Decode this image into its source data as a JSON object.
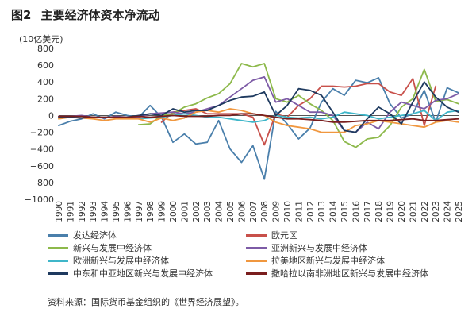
{
  "header": {
    "figure_no": "图2",
    "title": "主要经济体资本净流动",
    "unit": "(10亿美元)"
  },
  "source": "资料来源：国际货币基金组织的《世界经济展望》。",
  "chart_data": {
    "type": "line",
    "title": "主要经济体资本净流动",
    "ylabel": "(10亿美元)",
    "xlabel": "",
    "ylim": [
      -1000,
      800
    ],
    "yticks": [
      -1000,
      -800,
      -600,
      -400,
      -200,
      0,
      200,
      400,
      600,
      800
    ],
    "ytick_labels": [
      "−1000",
      "−800",
      "−600",
      "−400",
      "−200",
      "0",
      "200",
      "400",
      "600",
      "800"
    ],
    "x": [
      1990,
      1991,
      1992,
      1993,
      1994,
      1995,
      1996,
      1997,
      1998,
      1999,
      2000,
      2001,
      2002,
      2003,
      2004,
      2005,
      2006,
      2007,
      2008,
      2009,
      2010,
      2011,
      2012,
      2013,
      2014,
      2015,
      2016,
      2017,
      2018,
      2019,
      2020,
      2021,
      2022,
      2023,
      2024,
      2025
    ],
    "series": [
      {
        "name": "发达经济体",
        "color": "#4a7fab",
        "values": [
          -120,
          -70,
          -40,
          20,
          -40,
          40,
          0,
          -20,
          120,
          -20,
          -320,
          -220,
          -340,
          -320,
          -60,
          -400,
          -560,
          -360,
          -760,
          50,
          -100,
          -280,
          -150,
          160,
          320,
          240,
          420,
          390,
          450,
          140,
          -30,
          20,
          300,
          -80,
          330,
          270
        ]
      },
      {
        "name": "欧元区",
        "color": "#c8504a",
        "values": [
          null,
          null,
          null,
          null,
          null,
          null,
          null,
          null,
          null,
          -80,
          40,
          60,
          80,
          20,
          20,
          20,
          20,
          -20,
          -350,
          20,
          -20,
          120,
          200,
          350,
          350,
          340,
          350,
          380,
          380,
          280,
          240,
          440,
          -120,
          350,
          null,
          null
        ]
      },
      {
        "name": "新兴与发展中经济体",
        "color": "#8db94b",
        "values": [
          null,
          null,
          null,
          null,
          null,
          null,
          null,
          -110,
          -100,
          0,
          20,
          100,
          140,
          210,
          260,
          380,
          620,
          580,
          620,
          200,
          160,
          240,
          140,
          60,
          -60,
          -310,
          -380,
          -280,
          -260,
          -120,
          100,
          200,
          550,
          170,
          190,
          140
        ]
      },
      {
        "name": "亚洲新兴与发展中经济体",
        "color": "#7d5ba6",
        "values": [
          -10,
          -10,
          0,
          -20,
          -30,
          -10,
          -20,
          -20,
          20,
          30,
          40,
          20,
          40,
          80,
          120,
          220,
          320,
          420,
          460,
          160,
          200,
          120,
          40,
          40,
          0,
          -180,
          -200,
          -80,
          -160,
          40,
          160,
          120,
          80,
          180,
          200,
          260
        ]
      },
      {
        "name": "欧洲新兴与发展中经济体",
        "color": "#3fb6c9",
        "values": [
          null,
          null,
          null,
          null,
          null,
          null,
          -20,
          -40,
          -30,
          -20,
          0,
          20,
          0,
          -20,
          -20,
          -40,
          -60,
          -80,
          -60,
          0,
          -20,
          -30,
          -20,
          -40,
          -20,
          40,
          20,
          0,
          -40,
          -20,
          0,
          20,
          60,
          -60,
          40,
          60
        ]
      },
      {
        "name": "拉美地区新兴与发展中经济体",
        "color": "#f0973f",
        "values": [
          -40,
          -20,
          -30,
          -40,
          -60,
          -40,
          -40,
          -40,
          -80,
          -30,
          -60,
          -30,
          40,
          60,
          40,
          80,
          60,
          20,
          0,
          -80,
          -120,
          -140,
          -160,
          -200,
          -200,
          -200,
          -120,
          -100,
          -60,
          -80,
          -100,
          -120,
          -140,
          -80,
          -60,
          -80
        ]
      },
      {
        "name": "中东和中亚地区新兴与发展中经济体",
        "color": "#1e3a5f",
        "values": [
          -20,
          -20,
          -30,
          -20,
          -20,
          -20,
          -20,
          0,
          20,
          0,
          80,
          40,
          60,
          60,
          120,
          180,
          220,
          230,
          280,
          0,
          120,
          320,
          300,
          240,
          40,
          -180,
          -200,
          -40,
          100,
          20,
          -100,
          160,
          400,
          220,
          100,
          40
        ]
      },
      {
        "name": "撒哈拉以南非洲地区新兴与发展中经济体",
        "color": "#7a1e1e",
        "values": [
          -10,
          -10,
          -10,
          -20,
          -20,
          -20,
          -20,
          -10,
          -20,
          -10,
          0,
          -10,
          -10,
          -10,
          0,
          0,
          20,
          20,
          0,
          -20,
          -40,
          -40,
          -50,
          -60,
          -80,
          -80,
          -70,
          -60,
          -60,
          -60,
          -50,
          -40,
          -60,
          -60,
          -50,
          -40
        ]
      }
    ]
  }
}
